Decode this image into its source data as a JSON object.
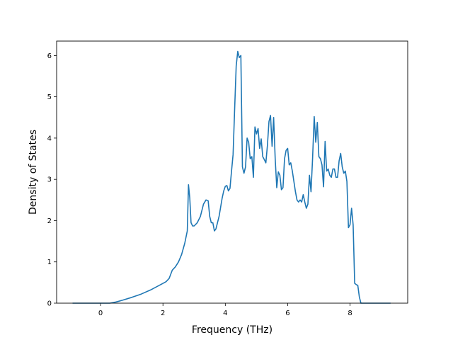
{
  "chart_data": {
    "type": "line",
    "title": "",
    "xlabel": "Frequency (THz)",
    "ylabel": "Density of States",
    "xlim": [
      -1.41,
      9.85
    ],
    "ylim": [
      0,
      6.35
    ],
    "xticks": [
      0,
      2,
      4,
      6,
      8
    ],
    "yticks": [
      0,
      1,
      2,
      3,
      4,
      5,
      6
    ],
    "grid": false,
    "legend": "none",
    "series": [
      {
        "color": "#1f77b4",
        "x": [
          -0.9,
          0.3,
          0.5,
          0.7,
          1.0,
          1.3,
          1.6,
          1.9,
          2.1,
          2.2,
          2.3,
          2.4,
          2.5,
          2.6,
          2.7,
          2.78,
          2.82,
          2.86,
          2.9,
          2.95,
          3.0,
          3.1,
          3.2,
          3.3,
          3.38,
          3.45,
          3.5,
          3.55,
          3.6,
          3.65,
          3.7,
          3.8,
          3.9,
          3.95,
          4.0,
          4.05,
          4.1,
          4.15,
          4.2,
          4.25,
          4.3,
          4.35,
          4.4,
          4.45,
          4.5,
          4.55,
          4.6,
          4.65,
          4.7,
          4.75,
          4.8,
          4.85,
          4.9,
          4.95,
          5.0,
          5.05,
          5.1,
          5.15,
          5.2,
          5.25,
          5.3,
          5.35,
          5.4,
          5.45,
          5.5,
          5.55,
          5.6,
          5.65,
          5.7,
          5.75,
          5.8,
          5.85,
          5.9,
          5.95,
          6.0,
          6.05,
          6.1,
          6.15,
          6.2,
          6.25,
          6.3,
          6.35,
          6.4,
          6.45,
          6.5,
          6.55,
          6.6,
          6.65,
          6.7,
          6.75,
          6.8,
          6.85,
          6.9,
          6.95,
          7.0,
          7.05,
          7.1,
          7.15,
          7.2,
          7.25,
          7.3,
          7.35,
          7.4,
          7.45,
          7.5,
          7.55,
          7.6,
          7.65,
          7.7,
          7.75,
          7.8,
          7.85,
          7.9,
          7.95,
          8.0,
          8.05,
          8.1,
          8.15,
          8.2,
          8.25,
          8.3,
          8.35,
          8.4,
          8.45,
          8.5,
          9.3
        ],
        "y": [
          0.0,
          0.0,
          0.03,
          0.07,
          0.14,
          0.22,
          0.32,
          0.44,
          0.52,
          0.6,
          0.8,
          0.88,
          1.0,
          1.18,
          1.45,
          1.75,
          2.87,
          2.55,
          1.95,
          1.87,
          1.87,
          1.95,
          2.1,
          2.4,
          2.5,
          2.48,
          2.1,
          1.95,
          1.95,
          1.75,
          1.8,
          2.1,
          2.55,
          2.72,
          2.83,
          2.85,
          2.72,
          2.78,
          3.2,
          3.6,
          4.7,
          5.75,
          6.1,
          5.95,
          6.0,
          3.3,
          3.15,
          3.3,
          4.0,
          3.9,
          3.5,
          3.55,
          3.05,
          4.27,
          4.1,
          4.23,
          3.75,
          3.98,
          3.55,
          3.48,
          3.4,
          3.82,
          4.4,
          4.55,
          3.8,
          4.5,
          3.5,
          2.8,
          3.18,
          3.1,
          2.75,
          2.8,
          3.5,
          3.7,
          3.75,
          3.35,
          3.4,
          3.2,
          2.95,
          2.7,
          2.5,
          2.45,
          2.5,
          2.45,
          2.63,
          2.45,
          2.3,
          2.4,
          3.1,
          2.7,
          3.5,
          4.52,
          3.9,
          4.38,
          3.55,
          3.5,
          3.35,
          2.82,
          3.92,
          3.2,
          3.25,
          3.1,
          3.05,
          3.25,
          3.25,
          3.05,
          3.05,
          3.45,
          3.63,
          3.3,
          3.15,
          3.2,
          2.95,
          1.83,
          1.9,
          2.3,
          1.9,
          0.48,
          0.45,
          0.43,
          0.15,
          0.0,
          0.0,
          0.0,
          0.0,
          0.0
        ]
      }
    ]
  }
}
